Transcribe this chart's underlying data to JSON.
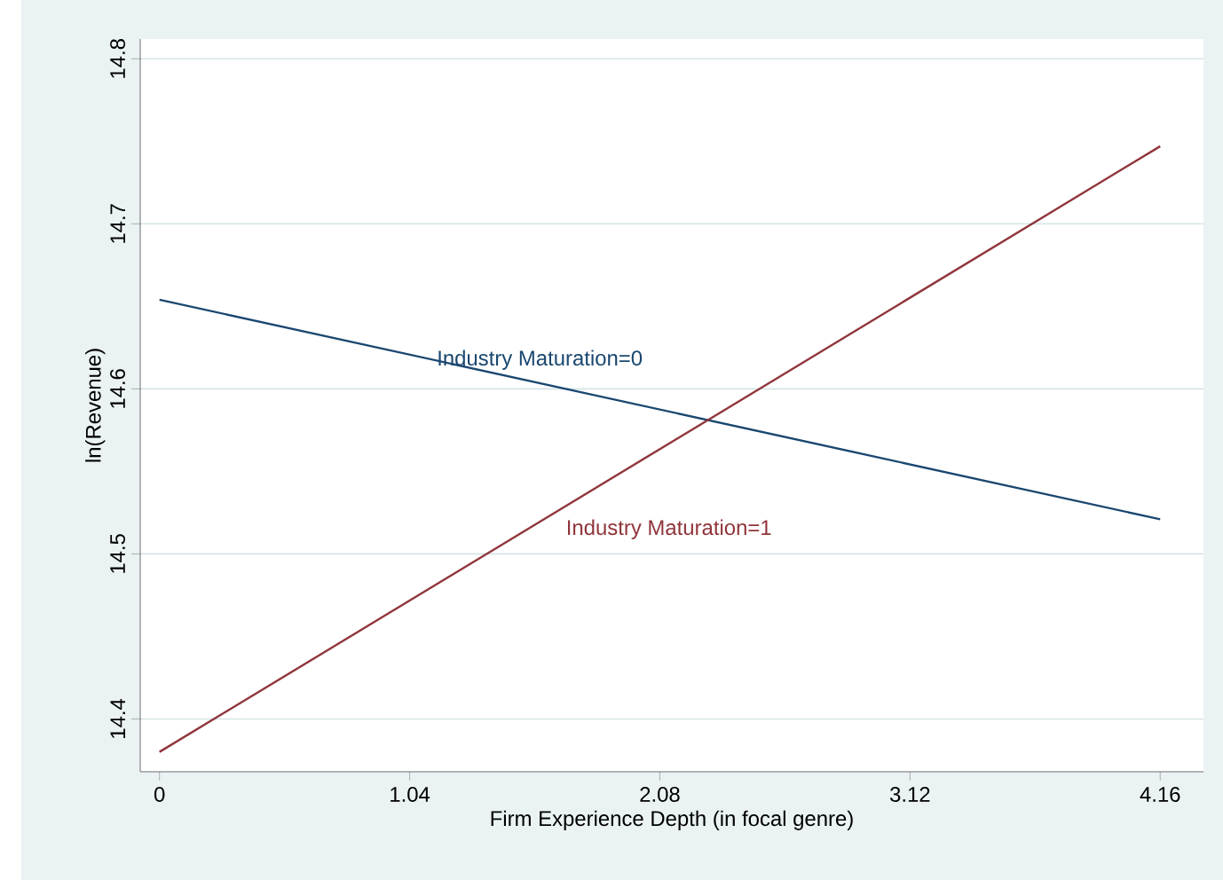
{
  "chart_data": {
    "type": "line",
    "xlabel": "Firm Experience Depth (in focal genre)",
    "ylabel": "ln(Revenue)",
    "x": [
      0,
      4.16
    ],
    "series": [
      {
        "name": "Industry Maturation=0",
        "color": "#1a476f",
        "values": [
          14.654,
          14.521
        ]
      },
      {
        "name": "Industry Maturation=1",
        "color": "#90353b",
        "values": [
          14.38,
          14.747
        ]
      }
    ],
    "xlim": [
      -0.08,
      4.34
    ],
    "ylim": [
      14.368,
      14.812
    ],
    "xticks": [
      0,
      1.04,
      2.08,
      3.12,
      4.16
    ],
    "yticks": [
      14.4,
      14.5,
      14.6,
      14.7,
      14.8
    ],
    "grid": "y",
    "marker": "none",
    "line_style": "solid"
  }
}
